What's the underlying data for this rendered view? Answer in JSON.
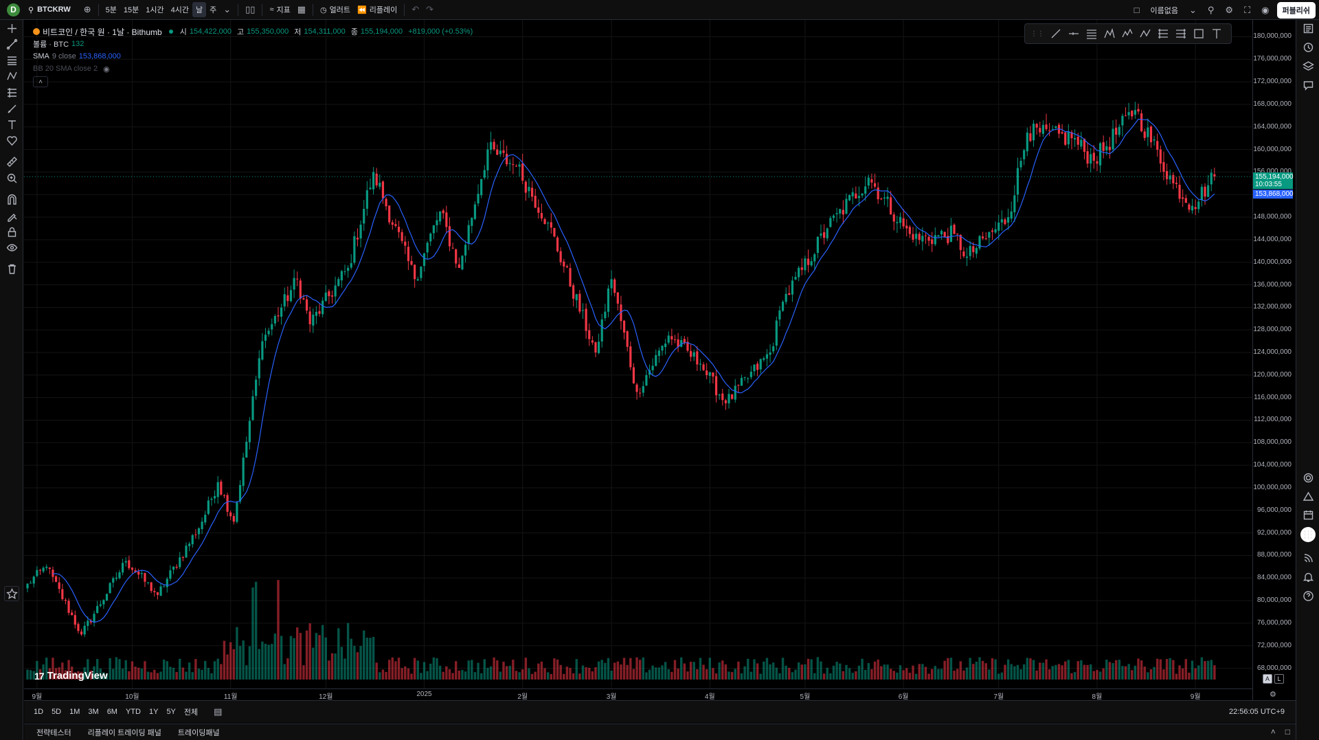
{
  "topbar": {
    "logo_letter": "D",
    "symbol": "BTCKRW",
    "intervals": [
      "5분",
      "15분",
      "1시간",
      "4시간",
      "날",
      "주"
    ],
    "active_interval": "날",
    "indicators_label": "지표",
    "alerts_label": "얼러트",
    "replay_label": "리플레이",
    "layout_name": "이름없음",
    "publish_label": "퍼블리쉬"
  },
  "legend": {
    "title": "비트코인 / 한국 원 · 1날 · Bithumb",
    "open_key": "시",
    "open_value": "154,422,000",
    "high_key": "고",
    "high_value": "155,350,000",
    "low_key": "저",
    "low_value": "154,311,000",
    "close_key": "종",
    "close_value": "155,194,000",
    "change": "+819,000 (+0.53%)",
    "volume_label": "볼륨 · BTC",
    "volume_value": "132",
    "sma_label": "SMA",
    "sma_params": "9 close",
    "sma_value": "153,868,000",
    "bb_label": "BB 20 SMA close 2"
  },
  "price_axis": {
    "labels": [
      "180,000,000",
      "176,000,000",
      "172,000,000",
      "168,000,000",
      "164,000,000",
      "160,000,000",
      "156,000,000",
      "152,000,000",
      "148,000,000",
      "144,000,000",
      "140,000,000",
      "136,000,000",
      "132,000,000",
      "128,000,000",
      "124,000,000",
      "120,000,000",
      "116,000,000",
      "112,000,000",
      "108,000,000",
      "104,000,000",
      "100,000,000",
      "96,000,000",
      "92,000,000",
      "88,000,000",
      "84,000,000",
      "80,000,000",
      "76,000,000",
      "72,000,000",
      "68,000,000"
    ],
    "last_price": "155,194,000",
    "countdown": "10:03:55",
    "sma_price": "153,868,000"
  },
  "time_axis": {
    "labels": [
      "9월",
      "10월",
      "11월",
      "12월",
      "2025",
      "2월",
      "3월",
      "4월",
      "5월",
      "6월",
      "7월",
      "8월",
      "9월"
    ]
  },
  "rangebar": {
    "ranges": [
      "1D",
      "5D",
      "1M",
      "3M",
      "6M",
      "YTD",
      "1Y",
      "5Y",
      "전체"
    ],
    "clock": "22:56:05 UTC+9"
  },
  "panels": {
    "tabs": [
      "전략테스터",
      "리플레이 트레이딩 패널",
      "트레이딩패널"
    ]
  },
  "watermark": "TradingView",
  "axis_buttons": {
    "auto": "A",
    "log": "L"
  },
  "colors": {
    "up": "#089981",
    "down": "#f23645",
    "sma": "#2962ff",
    "bg": "#000000"
  },
  "chart_data": {
    "type": "candlestick",
    "ylim": [
      66000000,
      182000000
    ],
    "series": [
      {
        "name": "SMA 9 close"
      }
    ],
    "anchors": [
      {
        "date": "2024-08-30",
        "close": 83000000
      },
      {
        "date": "2024-09-05",
        "close": 86000000
      },
      {
        "date": "2024-09-16",
        "close": 74000000
      },
      {
        "date": "2024-09-30",
        "close": 87000000
      },
      {
        "date": "2024-10-10",
        "close": 81000000
      },
      {
        "date": "2024-10-24",
        "close": 94000000
      },
      {
        "date": "2024-10-29",
        "close": 101000000
      },
      {
        "date": "2024-11-03",
        "close": 94000000
      },
      {
        "date": "2024-11-12",
        "close": 126000000
      },
      {
        "date": "2024-11-23",
        "close": 137000000
      },
      {
        "date": "2024-11-27",
        "close": 129000000
      },
      {
        "date": "2024-12-09",
        "close": 139000000
      },
      {
        "date": "2024-12-17",
        "close": 156000000
      },
      {
        "date": "2024-12-30",
        "close": 137000000
      },
      {
        "date": "2025-01-07",
        "close": 149000000
      },
      {
        "date": "2025-01-13",
        "close": 139000000
      },
      {
        "date": "2025-01-22",
        "close": 160000000
      },
      {
        "date": "2025-01-31",
        "close": 157000000
      },
      {
        "date": "2025-02-10",
        "close": 147000000
      },
      {
        "date": "2025-02-25",
        "close": 124000000
      },
      {
        "date": "2025-03-02",
        "close": 137000000
      },
      {
        "date": "2025-03-10",
        "close": 117000000
      },
      {
        "date": "2025-03-20",
        "close": 127000000
      },
      {
        "date": "2025-03-30",
        "close": 122000000
      },
      {
        "date": "2025-04-07",
        "close": 115000000
      },
      {
        "date": "2025-04-21",
        "close": 124000000
      },
      {
        "date": "2025-04-25",
        "close": 133000000
      },
      {
        "date": "2025-05-09",
        "close": 146000000
      },
      {
        "date": "2025-05-22",
        "close": 155000000
      },
      {
        "date": "2025-06-05",
        "close": 144000000
      },
      {
        "date": "2025-06-18",
        "close": 145000000
      },
      {
        "date": "2025-06-22",
        "close": 141000000
      },
      {
        "date": "2025-07-05",
        "close": 148000000
      },
      {
        "date": "2025-07-11",
        "close": 163000000
      },
      {
        "date": "2025-07-25",
        "close": 162000000
      },
      {
        "date": "2025-08-01",
        "close": 158000000
      },
      {
        "date": "2025-08-14",
        "close": 167000000
      },
      {
        "date": "2025-08-26",
        "close": 154000000
      },
      {
        "date": "2025-09-01",
        "close": 150000000
      },
      {
        "date": "2025-09-08",
        "close": 155194000
      }
    ]
  }
}
